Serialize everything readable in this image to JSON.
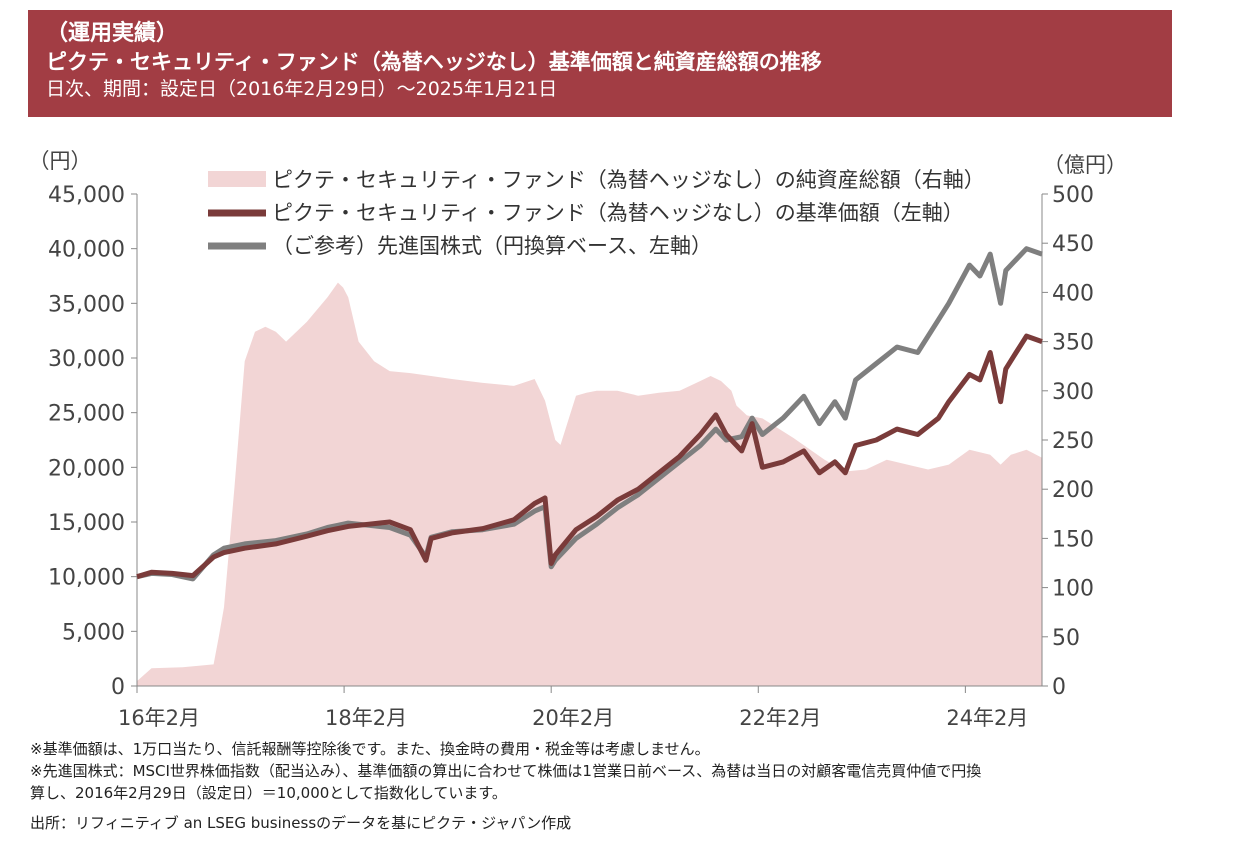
{
  "header": {
    "line1": "（運用実績）",
    "line2": "ピクテ・セキュリティ・ファンド（為替ヘッジなし）基準価額と純資産総額の推移",
    "line3": "日次、期間：設定日（2016年2月29日）～2025年1月21日"
  },
  "colors": {
    "header_bg": "#a23d44",
    "aum_fill": "#f2d5d5",
    "nav_line": "#7a3b3a",
    "msci_line": "#7f7f7f"
  },
  "chart_data": {
    "type": "line",
    "left_axis_unit": "（円）",
    "right_axis_unit": "（億円）",
    "left_ylim": [
      0,
      45000
    ],
    "right_ylim": [
      0,
      500
    ],
    "left_ticks": [
      "0",
      "5,000",
      "10,000",
      "15,000",
      "20,000",
      "25,000",
      "30,000",
      "35,000",
      "40,000",
      "45,000"
    ],
    "right_ticks": [
      "0",
      "50",
      "100",
      "150",
      "200",
      "250",
      "300",
      "350",
      "400",
      "450",
      "500"
    ],
    "x_range": [
      2016.16,
      2024.9
    ],
    "x_ticks": [
      {
        "x": 2016.16,
        "label": "16年2月"
      },
      {
        "x": 2018.16,
        "label": "18年2月"
      },
      {
        "x": 2020.16,
        "label": "20年2月"
      },
      {
        "x": 2022.16,
        "label": "22年2月"
      },
      {
        "x": 2024.16,
        "label": "24年2月"
      }
    ],
    "legend": {
      "position": "top",
      "aum": "ピクテ・セキュリティ・ファンド（為替ヘッジなし）の純資産総額（右軸）",
      "nav": "ピクテ・セキュリティ・ファンド（為替ヘッジなし）の基準価額（左軸）",
      "msci": "（ご参考）先進国株式（円換算ベース、左軸）"
    },
    "series": [
      {
        "name": "ピクテ・セキュリティ・ファンド（為替ヘッジなし）の純資産総額（右軸）",
        "axis": "right",
        "kind": "area",
        "x": [
          2016.16,
          2016.3,
          2016.6,
          2016.9,
          2016.95,
          2017.0,
          2017.1,
          2017.2,
          2017.3,
          2017.4,
          2017.5,
          2017.6,
          2017.8,
          2018.0,
          2018.1,
          2018.15,
          2018.2,
          2018.3,
          2018.45,
          2018.6,
          2018.8,
          2019.0,
          2019.2,
          2019.5,
          2019.8,
          2020.0,
          2020.1,
          2020.2,
          2020.25,
          2020.4,
          2020.5,
          2020.6,
          2020.8,
          2021.0,
          2021.2,
          2021.4,
          2021.6,
          2021.7,
          2021.8,
          2021.9,
          2021.95,
          2022.05,
          2022.2,
          2022.5,
          2022.8,
          2023.0,
          2023.2,
          2023.4,
          2023.6,
          2023.8,
          2024.0,
          2024.2,
          2024.4,
          2024.5,
          2024.6,
          2024.75,
          2024.9
        ],
        "y": [
          5,
          18,
          19,
          22,
          50,
          80,
          200,
          330,
          360,
          365,
          360,
          350,
          370,
          395,
          410,
          405,
          395,
          350,
          330,
          320,
          318,
          315,
          312,
          308,
          305,
          312,
          290,
          250,
          245,
          295,
          298,
          300,
          300,
          295,
          298,
          300,
          310,
          315,
          310,
          300,
          285,
          275,
          272,
          252,
          230,
          218,
          220,
          230,
          225,
          220,
          225,
          240,
          235,
          225,
          235,
          240,
          232
        ]
      },
      {
        "name": "ピクテ・セキュリティ・ファンド（為替ヘッジなし）の基準価額（左軸）",
        "axis": "left",
        "kind": "line",
        "x": [
          2016.16,
          2016.3,
          2016.5,
          2016.7,
          2016.9,
          2017.0,
          2017.2,
          2017.5,
          2017.8,
          2018.0,
          2018.1,
          2018.2,
          2018.4,
          2018.6,
          2018.8,
          2018.95,
          2019.0,
          2019.2,
          2019.5,
          2019.8,
          2020.0,
          2020.1,
          2020.16,
          2020.2,
          2020.4,
          2020.6,
          2020.8,
          2021.0,
          2021.2,
          2021.4,
          2021.6,
          2021.75,
          2021.85,
          2022.0,
          2022.1,
          2022.2,
          2022.4,
          2022.6,
          2022.75,
          2022.9,
          2023.0,
          2023.1,
          2023.3,
          2023.5,
          2023.7,
          2023.9,
          2024.0,
          2024.2,
          2024.3,
          2024.4,
          2024.5,
          2024.55,
          2024.65,
          2024.75,
          2024.9
        ],
        "y": [
          10000,
          10400,
          10300,
          10100,
          11800,
          12200,
          12600,
          13000,
          13700,
          14200,
          14400,
          14600,
          14800,
          15000,
          14300,
          11500,
          13500,
          14000,
          14400,
          15200,
          16700,
          17200,
          11200,
          12000,
          14300,
          15500,
          17000,
          18000,
          19500,
          21000,
          23000,
          24800,
          23000,
          21500,
          24000,
          20000,
          20500,
          21500,
          19500,
          20500,
          19500,
          22000,
          22500,
          23500,
          23000,
          24500,
          26000,
          28500,
          28000,
          30500,
          26000,
          29000,
          30500,
          32000,
          31500
        ]
      },
      {
        "name": "（ご参考）先進国株式（円換算ベース、左軸）",
        "axis": "left",
        "kind": "line",
        "x": [
          2016.16,
          2016.3,
          2016.5,
          2016.7,
          2016.9,
          2017.0,
          2017.2,
          2017.5,
          2017.8,
          2018.0,
          2018.1,
          2018.2,
          2018.4,
          2018.6,
          2018.8,
          2018.95,
          2019.0,
          2019.2,
          2019.5,
          2019.8,
          2020.0,
          2020.1,
          2020.16,
          2020.2,
          2020.4,
          2020.6,
          2020.8,
          2021.0,
          2021.2,
          2021.4,
          2021.6,
          2021.75,
          2021.85,
          2022.0,
          2022.1,
          2022.2,
          2022.4,
          2022.6,
          2022.75,
          2022.9,
          2023.0,
          2023.1,
          2023.3,
          2023.5,
          2023.7,
          2023.9,
          2024.0,
          2024.2,
          2024.3,
          2024.4,
          2024.5,
          2024.55,
          2024.65,
          2024.75,
          2024.9
        ],
        "y": [
          10000,
          10300,
          10200,
          9800,
          12000,
          12600,
          13000,
          13300,
          13900,
          14500,
          14700,
          14900,
          14700,
          14500,
          13800,
          11800,
          13600,
          14100,
          14300,
          14800,
          16000,
          16400,
          10900,
          11500,
          13500,
          14800,
          16300,
          17500,
          19000,
          20500,
          22000,
          23500,
          22500,
          22800,
          24500,
          23000,
          24500,
          26500,
          24000,
          26000,
          24500,
          28000,
          29500,
          31000,
          30500,
          33500,
          35000,
          38500,
          37500,
          39500,
          35000,
          38000,
          39000,
          40000,
          39500
        ]
      }
    ]
  },
  "notes": [
    "※基準価額は、1万口当たり、信託報酬等控除後です。また、換金時の費用・税金等は考慮しません。",
    "※先進国株式：MSCI世界株価指数（配当込み）、基準価額の算出に合わせて株価は1営業日前ベース、為替は当日の対顧客電信売買仲値で円換",
    "算し、2016年2月29日（設定日）＝10,000として指数化しています。"
  ],
  "source": "出所：リフィニティブ an LSEG businessのデータを基にピクテ・ジャパン作成"
}
